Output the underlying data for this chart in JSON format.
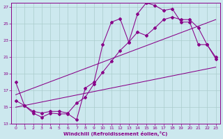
{
  "xlabel": "Windchill (Refroidissement éolien,°C)",
  "bg_color": "#cce8ee",
  "grid_color": "#aacccc",
  "line_color": "#880088",
  "xlim": [
    -0.5,
    23.5
  ],
  "ylim": [
    13,
    27.5
  ],
  "xticks": [
    0,
    1,
    2,
    3,
    4,
    5,
    6,
    7,
    8,
    9,
    10,
    11,
    12,
    13,
    14,
    15,
    16,
    17,
    18,
    19,
    20,
    21,
    22,
    23
  ],
  "yticks": [
    13,
    15,
    17,
    19,
    21,
    23,
    25,
    27
  ],
  "line1_x": [
    0,
    1,
    2,
    3,
    4,
    5,
    6,
    7,
    8,
    9,
    10,
    11,
    12,
    13,
    14,
    15,
    16,
    17,
    18,
    19,
    20,
    21,
    22,
    23
  ],
  "line1_y": [
    18.0,
    15.2,
    14.3,
    13.8,
    14.3,
    14.2,
    14.2,
    13.5,
    17.3,
    18.0,
    22.5,
    25.2,
    25.6,
    22.8,
    26.2,
    27.5,
    27.2,
    26.6,
    26.8,
    25.2,
    25.2,
    22.5,
    22.5,
    20.8
  ],
  "line2_x": [
    0,
    1,
    2,
    3,
    4,
    5,
    6,
    7,
    8,
    9,
    10,
    11,
    12,
    13,
    14,
    15,
    16,
    17,
    18,
    19,
    20,
    21,
    22,
    23
  ],
  "line2_y": [
    15.8,
    15.2,
    14.5,
    14.3,
    14.5,
    14.5,
    14.3,
    15.5,
    16.2,
    17.8,
    19.2,
    20.5,
    21.8,
    22.8,
    24.0,
    23.6,
    24.5,
    25.5,
    25.8,
    25.5,
    25.5,
    24.5,
    22.5,
    21.0
  ],
  "line3_x": [
    0,
    23
  ],
  "line3_y": [
    15.0,
    19.8
  ],
  "line4_x": [
    0,
    23
  ],
  "line4_y": [
    16.5,
    25.5
  ]
}
